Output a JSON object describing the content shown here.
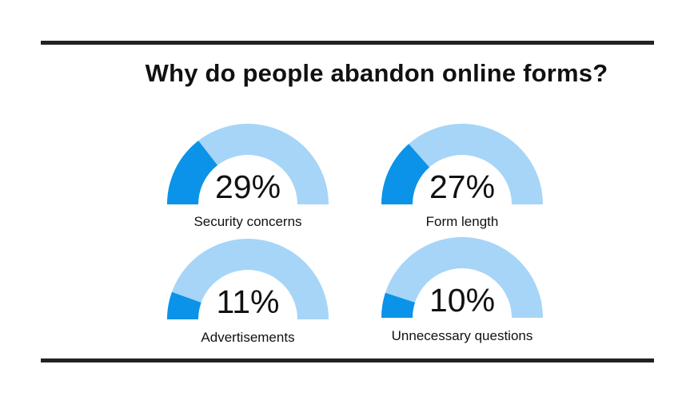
{
  "title": "Why do people abandon online forms?",
  "colors": {
    "filled": "#0a93e8",
    "track": "#a6d5f7",
    "rule": "#222222",
    "text": "#111111"
  },
  "chart_data": {
    "type": "gauge",
    "title": "Why do people abandon online forms?",
    "max": 100,
    "unit": "%",
    "items": [
      {
        "label": "Security concerns",
        "value": 29,
        "display": "29%"
      },
      {
        "label": "Form length",
        "value": 27,
        "display": "27%"
      },
      {
        "label": "Advertisements",
        "value": 11,
        "display": "11%"
      },
      {
        "label": "Unnecessary questions",
        "value": 10,
        "display": "10%"
      }
    ]
  }
}
